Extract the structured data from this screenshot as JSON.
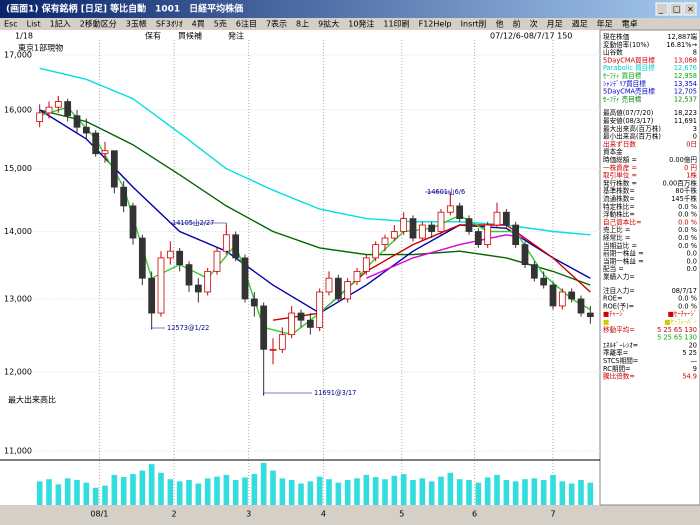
{
  "window": {
    "title": "(画面1) 保有銘柄 [日足] 等比自動　1001　日経平均株価"
  },
  "menu": [
    "Esc",
    "List",
    "1記入",
    "2移動区分",
    "3玉帳",
    "SF3ｵﾘｵ",
    "4買",
    "5売",
    "6注目",
    "7表示",
    "8上",
    "9拡大",
    "10発注",
    "11印刷",
    "F12Help",
    "Insrt削",
    "他",
    "前",
    "次",
    "月足",
    "週足",
    "年足",
    "電卓"
  ],
  "info": {
    "page": "1/18",
    "market": "東京1部現物",
    "hold": "保有",
    "buy": "買候補",
    "order": "発注",
    "range": "07/12/6-08/7/17 150",
    "volume_label": "最大出来高比"
  },
  "chart_data": {
    "type": "candlestick",
    "log_scale": true,
    "grid": true,
    "ylim": [
      10915,
      17280
    ],
    "yticks": [
      {
        "value": 11000,
        "label": "11,000"
      },
      {
        "value": 12000,
        "label": "12,000"
      },
      {
        "value": 13000,
        "label": "13,000"
      },
      {
        "value": 14000,
        "label": "14,000"
      },
      {
        "value": 15000,
        "label": "15,000"
      },
      {
        "value": 16000,
        "label": "16,000"
      },
      {
        "value": 17000,
        "label": "17,000"
      }
    ],
    "xticks": [
      {
        "value": 6.4,
        "label": "08/1"
      },
      {
        "value": 14.4,
        "label": "2"
      },
      {
        "value": 22.4,
        "label": "3"
      },
      {
        "value": 30.4,
        "label": "4"
      },
      {
        "value": 38.8,
        "label": "5"
      },
      {
        "value": 46.6,
        "label": "6"
      },
      {
        "value": 55,
        "label": "7"
      }
    ],
    "up_color": "#cc0000",
    "down_color": "#333333",
    "candles": [
      [
        15800,
        16100,
        15700,
        15950
      ],
      [
        15950,
        16150,
        15850,
        16050
      ],
      [
        16050,
        16250,
        15950,
        16150
      ],
      [
        16150,
        16200,
        15800,
        15900
      ],
      [
        15900,
        16000,
        15600,
        15700
      ],
      [
        15700,
        15850,
        15500,
        15600
      ],
      [
        15600,
        15650,
        15200,
        15250
      ],
      [
        15250,
        15450,
        15100,
        15300
      ],
      [
        15300,
        15300,
        14600,
        14700
      ],
      [
        14700,
        14800,
        14300,
        14400
      ],
      [
        14400,
        14450,
        13800,
        13900
      ],
      [
        13900,
        13950,
        13200,
        13300
      ],
      [
        13300,
        13400,
        12573,
        12800
      ],
      [
        12800,
        13700,
        12750,
        13600
      ],
      [
        13600,
        13850,
        13500,
        13700
      ],
      [
        13700,
        13750,
        13400,
        13500
      ],
      [
        13500,
        13550,
        13100,
        13200
      ],
      [
        13200,
        13300,
        12950,
        13100
      ],
      [
        13100,
        13450,
        13050,
        13400
      ],
      [
        13400,
        13750,
        13350,
        13700
      ],
      [
        13700,
        14105,
        13650,
        13950
      ],
      [
        13950,
        14000,
        13550,
        13600
      ],
      [
        13600,
        13650,
        12950,
        13000
      ],
      [
        13000,
        13100,
        12750,
        12900
      ],
      [
        12900,
        12950,
        11691,
        12300
      ],
      [
        12300,
        12450,
        12100,
        12300
      ],
      [
        12300,
        12600,
        12250,
        12500
      ],
      [
        12500,
        12900,
        12450,
        12800
      ],
      [
        12800,
        12850,
        12600,
        12700
      ],
      [
        12700,
        12800,
        12500,
        12600
      ],
      [
        12600,
        13150,
        12550,
        13100
      ],
      [
        13100,
        13400,
        13050,
        13300
      ],
      [
        13300,
        13350,
        12950,
        13000
      ],
      [
        13000,
        13300,
        12950,
        13250
      ],
      [
        13250,
        13450,
        13200,
        13400
      ],
      [
        13400,
        13650,
        13350,
        13600
      ],
      [
        13600,
        13850,
        13550,
        13800
      ],
      [
        13800,
        13950,
        13700,
        13900
      ],
      [
        13900,
        14100,
        13850,
        14000
      ],
      [
        14000,
        14300,
        13950,
        14200
      ],
      [
        14200,
        14250,
        13850,
        13900
      ],
      [
        13900,
        14150,
        13850,
        14100
      ],
      [
        14100,
        14150,
        13900,
        14000
      ],
      [
        14000,
        14350,
        13950,
        14300
      ],
      [
        14300,
        14601,
        14250,
        14400
      ],
      [
        14400,
        14450,
        14150,
        14200
      ],
      [
        14200,
        14250,
        13950,
        14000
      ],
      [
        14000,
        14050,
        13750,
        13800
      ],
      [
        13800,
        14150,
        13750,
        14100
      ],
      [
        14100,
        14450,
        14050,
        14300
      ],
      [
        14300,
        14350,
        14050,
        14100
      ],
      [
        14100,
        14150,
        13750,
        13800
      ],
      [
        13800,
        13850,
        13450,
        13500
      ],
      [
        13500,
        13550,
        13250,
        13300
      ],
      [
        13300,
        13400,
        13150,
        13200
      ],
      [
        13200,
        13250,
        12850,
        12900
      ],
      [
        12900,
        13150,
        12850,
        13100
      ],
      [
        13100,
        13150,
        12950,
        13000
      ],
      [
        13000,
        13050,
        12750,
        12800
      ],
      [
        12800,
        12900,
        12650,
        12750
      ]
    ],
    "series": [
      {
        "color": "#00e0e0",
        "x": [
          0,
          5,
          10,
          15,
          20,
          25,
          30,
          35,
          40,
          45,
          50,
          55,
          59
        ],
        "values": [
          16750,
          16550,
          16200,
          15600,
          15000,
          14650,
          14350,
          14200,
          14150,
          14150,
          14100,
          14000,
          13950
        ]
      },
      {
        "color": "#006600",
        "x": [
          0,
          5,
          10,
          15,
          20,
          25,
          30,
          35,
          40,
          45,
          50,
          55,
          59
        ],
        "values": [
          16000,
          15800,
          15400,
          14900,
          14400,
          14000,
          13750,
          13650,
          13650,
          13700,
          13600,
          13400,
          13200
        ]
      },
      {
        "color": "#0000aa",
        "x": [
          0,
          5,
          10,
          15,
          20,
          25,
          30,
          35,
          40,
          45,
          50,
          55,
          59
        ],
        "values": [
          16000,
          15500,
          14700,
          14000,
          13700,
          13200,
          12800,
          13200,
          13700,
          14100,
          14050,
          13600,
          13300
        ]
      },
      {
        "color": "#cc0000",
        "x": [
          25,
          30,
          35,
          40,
          45,
          50,
          55,
          59
        ],
        "values": [
          12700,
          12800,
          13400,
          13800,
          14100,
          14100,
          13600,
          13100
        ]
      },
      {
        "color": "#dd00dd",
        "x": [
          35,
          40,
          45,
          50,
          52
        ],
        "values": [
          13300,
          13600,
          13800,
          13950,
          13900
        ]
      },
      {
        "color": "#33cc33",
        "x": [
          0,
          3,
          6,
          9,
          12,
          15,
          18,
          21,
          24,
          27,
          30,
          33,
          36,
          39,
          42,
          45,
          48,
          51,
          54,
          57,
          59
        ],
        "values": [
          15900,
          16050,
          15500,
          14700,
          13300,
          13500,
          13300,
          13800,
          12600,
          12500,
          12800,
          13150,
          13600,
          14000,
          14050,
          14250,
          14000,
          14000,
          13350,
          13000,
          12850
        ]
      }
    ],
    "volume_color": "#33dddd",
    "volume_lim": [
      0,
      100
    ],
    "volume": [
      55,
      60,
      48,
      62,
      58,
      52,
      40,
      45,
      70,
      65,
      72,
      80,
      95,
      75,
      60,
      55,
      58,
      50,
      62,
      66,
      70,
      58,
      64,
      72,
      98,
      80,
      62,
      58,
      50,
      55,
      66,
      60,
      52,
      58,
      62,
      70,
      65,
      60,
      68,
      72,
      58,
      62,
      55,
      66,
      75,
      60,
      58,
      52,
      64,
      70,
      58,
      55,
      60,
      62,
      58,
      70,
      55,
      50,
      58,
      52
    ],
    "annotations": [
      "12573@1/22",
      "14105山2/27",
      "11691@3/17",
      "14601山6/6"
    ]
  },
  "panel": [
    [
      {
        "label": "現在株価",
        "value": "12,887端"
      },
      {
        "label": "変動倍率(10%)",
        "value": "16.81%→"
      },
      {
        "label": "山谷数",
        "value": "8"
      },
      {
        "label": "5DayCMA買目標",
        "value": "13,068",
        "color": "#cc0000"
      },
      {
        "label": "Parabolic 買目標",
        "value": "12,676",
        "color": "#00cccc"
      },
      {
        "label": "ｾｰﾌﾃｨ 買目標",
        "value": "12,958",
        "color": "#00aa00"
      },
      {
        "label": "ｼｬﾝﾃﾞﾘｱ買目標",
        "value": "13,354",
        "color": "#0000cc"
      },
      {
        "label": "5DayCMA売目標",
        "value": "12,705",
        "color": "#0000cc"
      },
      {
        "label": "ｾｰﾌﾃｨ 売目標",
        "value": "12,537",
        "color": "#008800"
      }
    ],
    [
      {
        "label": "最高値(07/7/20)",
        "value": "18,223"
      },
      {
        "label": "最安値(08/3/17)",
        "value": "11,691"
      },
      {
        "label": "最大出来高(百万株)",
        "value": "3"
      },
      {
        "label": "最小出来高(百万株)",
        "value": "0"
      },
      {
        "label": "出来ず日数",
        "value": "0日",
        "color": "#cc0000"
      },
      {
        "label": "資本金"
      },
      {
        "label": "時価総額 =",
        "value": "0.00億円"
      },
      {
        "label": "一株資産 =",
        "value": "0 円",
        "color": "#cc0000"
      },
      {
        "label": "取引単位 =",
        "value": "1株",
        "color": "#cc0000"
      },
      {
        "label": "発行株数 =",
        "value": "0.00百万株"
      },
      {
        "label": "基準株数=",
        "value": "80千株"
      },
      {
        "label": "流通株数=",
        "value": "145千株"
      },
      {
        "label": "特定株比=",
        "value": "0.0 %"
      },
      {
        "label": "浮動株比=",
        "value": "0.0 %"
      },
      {
        "label": "自己資本比=",
        "value": "0.0 %",
        "color": "#cc0000"
      },
      {
        "label": "売上比 =",
        "value": "0.0 %"
      },
      {
        "label": "経常比 =",
        "value": "0.0 %"
      },
      {
        "label": "当期益比 =",
        "value": "0.0 %"
      },
      {
        "label": "前期一株益 =",
        "value": "0.0"
      },
      {
        "label": "当期一株益 =",
        "value": "0.0"
      },
      {
        "label": "配当 =",
        "value": "0.0"
      },
      {
        "label": "業績入力="
      }
    ],
    [
      {
        "label": "注目入力=",
        "value": "08/7/17"
      },
      {
        "label": "ROE=",
        "value": "0.0 %"
      },
      {
        "label": "ROE(予)=",
        "value": "0.0 %"
      },
      {
        "label": "■ﾁｬｰｼﾞ",
        "value": "■ｾｰﾁｬｰｼﾞ",
        "color": "#cc0000"
      },
      {
        "label": "■",
        "value": "■ｾｰﾌｨｰﾊﾞｰ",
        "color": "#cccc00"
      },
      {
        "label": "移動平均=",
        "value": "5 25 65 130",
        "color": "#cc0000"
      },
      {
        "label": "",
        "value": "5 25 65 130",
        "color": "#00aa00"
      },
      {
        "label": "ｴﾈﾙｷﾞｰﾚｼｵ=",
        "value": "20"
      },
      {
        "label": "乖離率=",
        "value": "5 25"
      },
      {
        "label": "STCS期間=",
        "value": "—"
      },
      {
        "label": "RC期間=",
        "value": "9"
      },
      {
        "label": "騰比倍数=",
        "value": "54.9",
        "color": "#cc0000"
      }
    ]
  ]
}
